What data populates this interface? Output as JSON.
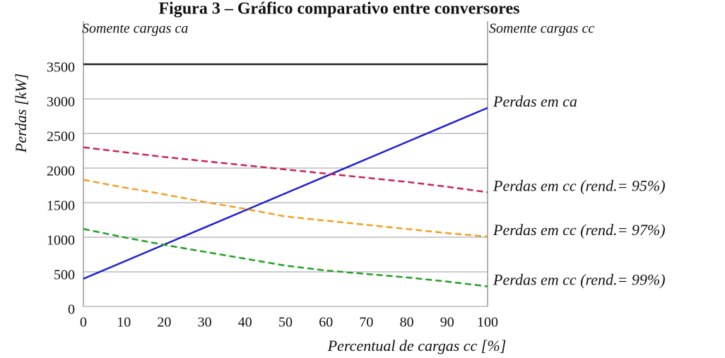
{
  "chart_data": {
    "type": "line",
    "title": "Figura 3 – Gráfico comparativo entre conversores",
    "left_note": "Somente cargas ca",
    "right_note": "Somente cargas cc",
    "x_label": "Percentual de cargas cc [%]",
    "y_label": "Perdas [kW]",
    "x": [
      0,
      10,
      20,
      30,
      40,
      50,
      60,
      70,
      80,
      90,
      100
    ],
    "xlim": [
      0,
      100
    ],
    "xticks": [
      0,
      10,
      20,
      30,
      40,
      50,
      60,
      70,
      80,
      90,
      100
    ],
    "ylim": [
      0,
      3500
    ],
    "yticks": [
      0,
      500,
      1000,
      1500,
      2000,
      2500,
      3000,
      3500
    ],
    "grid": true,
    "series": [
      {
        "name": "Perdas em ca",
        "color": "#1f1fd6",
        "linestyle": "solid",
        "values": [
          400,
          647,
          894,
          1141,
          1388,
          1635,
          1882,
          2129,
          2376,
          2623,
          2870
        ]
      },
      {
        "name": "Perdas em cc (rend.= 95%)",
        "color": "#cc2255",
        "linestyle": "dashed",
        "values": [
          2300,
          2230,
          2160,
          2100,
          2040,
          1980,
          1920,
          1860,
          1800,
          1730,
          1650
        ]
      },
      {
        "name": "Perdas em cc (rend.= 97%)",
        "color": "#f0a020",
        "linestyle": "dashed",
        "values": [
          1830,
          1720,
          1620,
          1510,
          1410,
          1300,
          1240,
          1180,
          1120,
          1060,
          1010
        ]
      },
      {
        "name": "Perdas em cc (rend.= 99%)",
        "color": "#22a022",
        "linestyle": "dashed",
        "values": [
          1120,
          1000,
          890,
          790,
          690,
          590,
          520,
          470,
          420,
          360,
          290
        ]
      }
    ]
  }
}
